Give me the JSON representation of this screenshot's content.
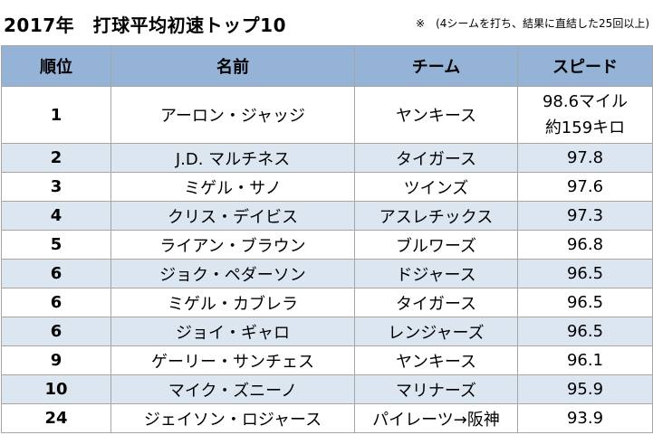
{
  "title": "2017年　打球平均初速トップ10",
  "note": "※　(4シームを打ち、結果に直結した25回以上)",
  "headers": {
    "rank": "順位",
    "name": "名前",
    "team": "チーム",
    "speed": "スピード"
  },
  "rows": [
    {
      "rank": "1",
      "name": "アーロン・ジャッジ",
      "team": "ヤンキース",
      "speed": "98.6マイル",
      "speed_sub": "約159キロ"
    },
    {
      "rank": "2",
      "name": "J.D. マルチネス",
      "team": "タイガース",
      "speed": "97.8"
    },
    {
      "rank": "3",
      "name": "ミゲル・サノ",
      "team": "ツインズ",
      "speed": "97.6"
    },
    {
      "rank": "4",
      "name": "クリス・デイビス",
      "team": "アスレチックス",
      "speed": "97.3"
    },
    {
      "rank": "5",
      "name": "ライアン・ブラウン",
      "team": "ブルワーズ",
      "speed": "96.8"
    },
    {
      "rank": "6",
      "name": "ジョク・ペダーソン",
      "team": "ドジャース",
      "speed": "96.5"
    },
    {
      "rank": "6",
      "name": "ミゲル・カブレラ",
      "team": "タイガース",
      "speed": "96.5"
    },
    {
      "rank": "6",
      "name": "ジョイ・ギャロ",
      "team": "レンジャーズ",
      "speed": "96.5"
    },
    {
      "rank": "9",
      "name": "ゲーリー・サンチェス",
      "team": "ヤンキース",
      "speed": "96.1"
    },
    {
      "rank": "10",
      "name": "マイク・ズニーノ",
      "team": "マリナーズ",
      "speed": "95.9"
    },
    {
      "rank": "24",
      "name": "ジェイソン・ロジャース",
      "team": "パイレーツ→阪神",
      "speed": "93.9"
    }
  ]
}
